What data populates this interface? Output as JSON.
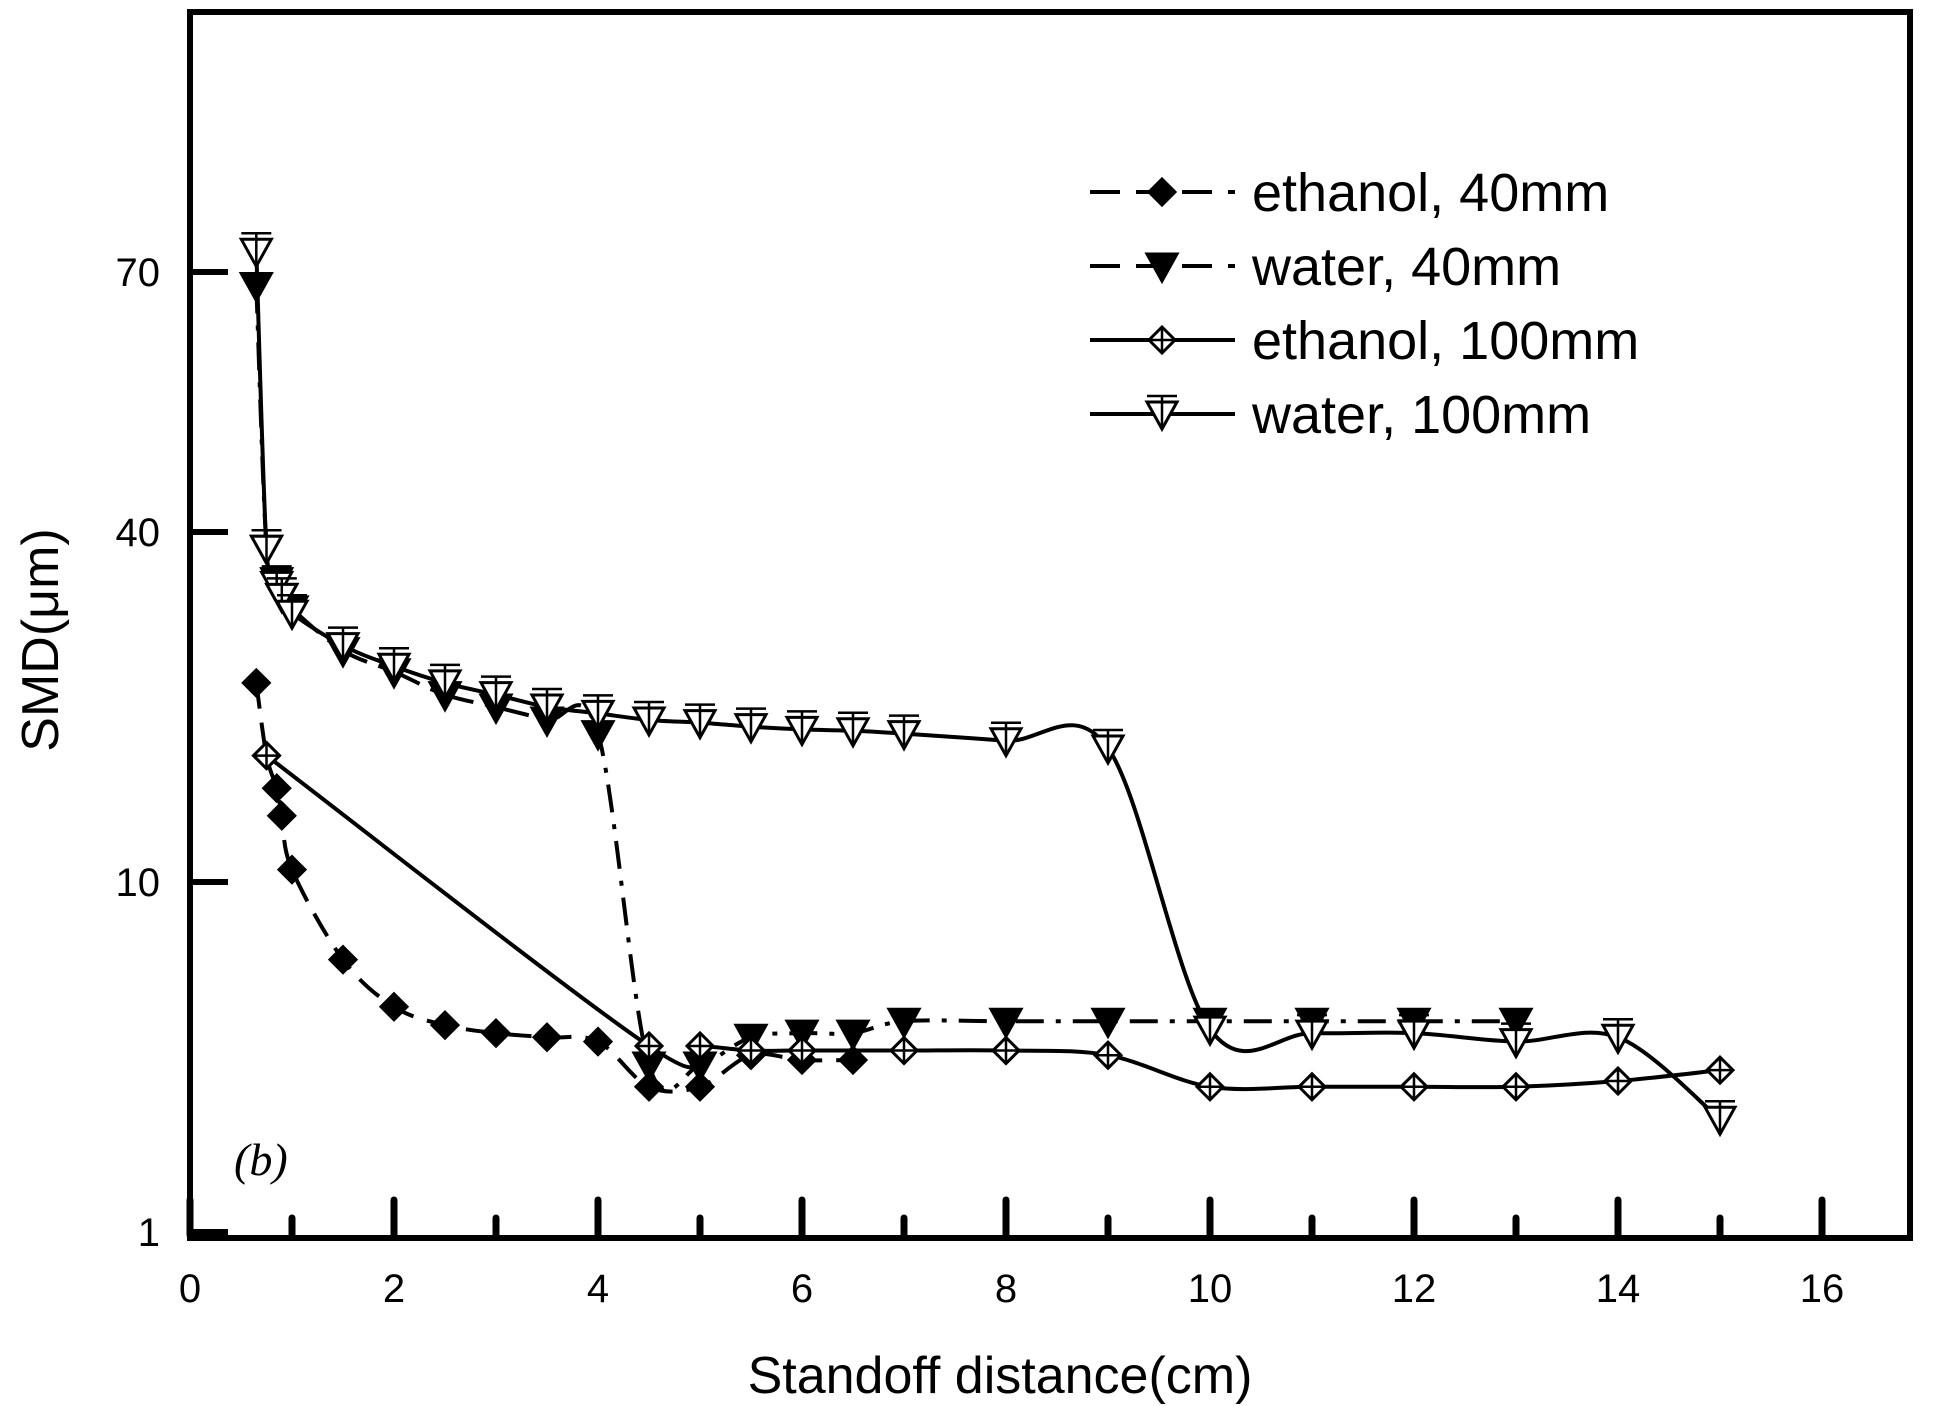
{
  "chart_data": {
    "type": "line",
    "xlabel": "Standoff distance(cm)",
    "ylabel": "SMD(μm)",
    "panel_label": "(b)",
    "x_range": [
      0,
      17
    ],
    "x_ticks": [
      0,
      2,
      4,
      6,
      8,
      10,
      12,
      14,
      16
    ],
    "y_scale": "custom",
    "y_ticks": [
      1,
      10,
      40,
      70
    ],
    "legend_position": "top-right",
    "colors": {
      "line": "#000000",
      "background": "#ffffff"
    },
    "series": [
      {
        "name": "ethanol, 40mm",
        "line_style": "dash",
        "marker": "filled-diamond",
        "x": [
          0.65,
          0.75,
          0.85,
          0.9,
          1.0,
          1.5,
          2.0,
          2.5,
          3.0,
          3.5,
          4.0,
          4.5,
          5.0,
          5.5,
          6.0,
          6.5
        ],
        "y": [
          22.0,
          16.5,
          14.5,
          13.0,
          10.5,
          6.0,
          4.4,
          3.9,
          3.7,
          3.6,
          3.5,
          2.6,
          2.6,
          3.2,
          3.1,
          3.1
        ]
      },
      {
        "name": "water, 40mm",
        "line_style": "dash-dot",
        "marker": "filled-triangle-down",
        "x": [
          0.65,
          0.75,
          0.85,
          0.9,
          1.0,
          1.5,
          2.0,
          2.5,
          3.0,
          3.5,
          4.0,
          4.5,
          5.0,
          5.5,
          6.0,
          6.5,
          7.0,
          8.0,
          9.0,
          10.0,
          11.0,
          12.0,
          13.0
        ],
        "y": [
          68.0,
          37.5,
          33.0,
          31.0,
          29.5,
          25.0,
          23.0,
          21.0,
          20.0,
          19.0,
          18.0,
          3.0,
          3.0,
          3.6,
          3.7,
          3.7,
          4.0,
          4.0,
          4.0,
          4.0,
          4.0,
          4.0,
          4.0
        ]
      },
      {
        "name": "ethanol, 100mm",
        "line_style": "solid",
        "marker": "open-crossed-diamond",
        "x": [
          0.75,
          4.5,
          5.0,
          5.5,
          6.0,
          7.0,
          8.0,
          9.0,
          10.0,
          11.0,
          12.0,
          13.0,
          14.0,
          15.0
        ],
        "y": [
          16.5,
          3.4,
          3.4,
          3.3,
          3.3,
          3.3,
          3.3,
          3.2,
          2.6,
          2.6,
          2.6,
          2.6,
          2.7,
          2.9
        ]
      },
      {
        "name": "water, 100mm",
        "line_style": "solid",
        "marker": "open-crossed-triangle-down",
        "x": [
          0.65,
          0.75,
          0.85,
          0.9,
          1.0,
          1.5,
          2.0,
          2.5,
          3.0,
          3.5,
          4.0,
          4.5,
          5.0,
          5.5,
          6.0,
          6.5,
          7.0,
          8.0,
          9.0,
          10.0,
          11.0,
          12.0,
          13.0,
          14.0,
          15.0
        ],
        "y": [
          72.0,
          37.5,
          32.5,
          31.0,
          29.0,
          25.5,
          23.5,
          22.0,
          21.0,
          20.0,
          19.5,
          19.0,
          18.8,
          18.5,
          18.3,
          18.2,
          18.0,
          17.5,
          17.0,
          3.8,
          3.7,
          3.7,
          3.5,
          3.6,
          2.1
        ]
      }
    ]
  }
}
